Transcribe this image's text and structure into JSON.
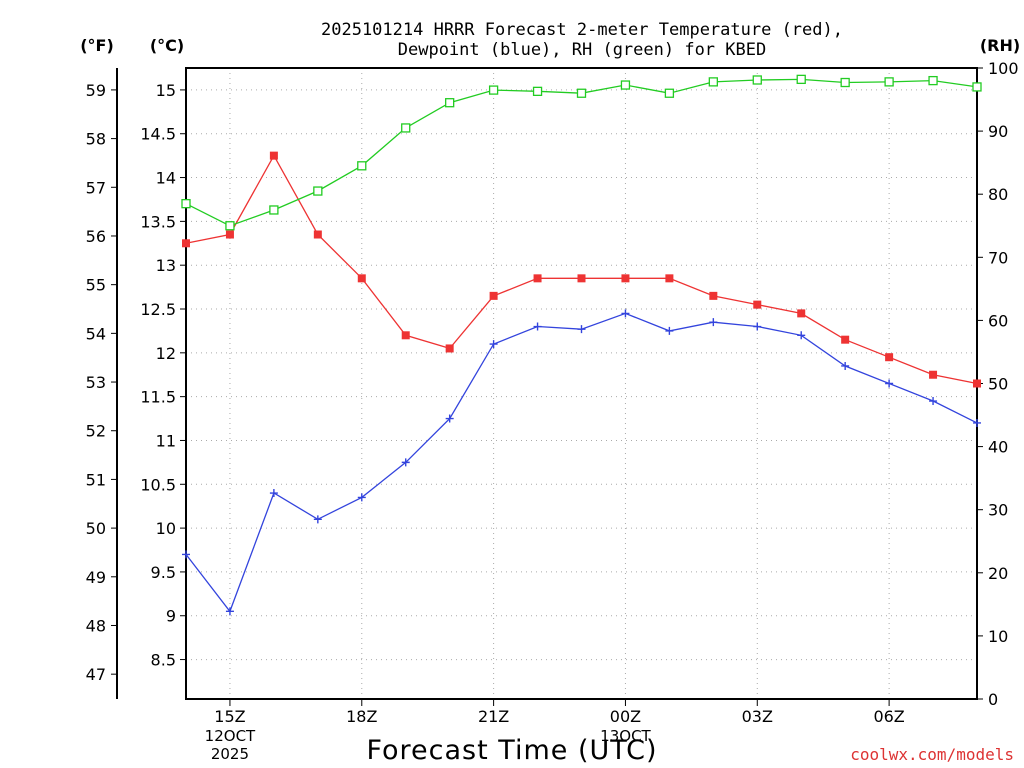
{
  "chart_data": {
    "type": "line",
    "title_line1": "2025101214 HRRR Forecast 2-meter Temperature (red),",
    "title_line2": "Dewpoint (blue), RH (green) for KBED",
    "xlabel": "Forecast Time (UTC)",
    "credit": "coolwx.com/models",
    "axis_units": {
      "fahrenheit": "(°F)",
      "celsius": "(°C)",
      "rh": "(RH)"
    },
    "x_ticks": [
      {
        "hour": 1,
        "label": "15Z",
        "date1": "12OCT",
        "date2": "2025"
      },
      {
        "hour": 4,
        "label": "18Z",
        "date1": "",
        "date2": ""
      },
      {
        "hour": 7,
        "label": "21Z",
        "date1": "",
        "date2": ""
      },
      {
        "hour": 10,
        "label": "00Z",
        "date1": "13OCT",
        "date2": ""
      },
      {
        "hour": 13,
        "label": "03Z",
        "date1": "",
        "date2": ""
      },
      {
        "hour": 16,
        "label": "06Z",
        "date1": "",
        "date2": ""
      }
    ],
    "x_range": [
      0,
      18
    ],
    "celsius_range": [
      8.05,
      15.25
    ],
    "rh_range": [
      0,
      100
    ],
    "celsius_ticks": [
      "8.5",
      "9",
      "9.5",
      "10",
      "10.5",
      "11",
      "11.5",
      "12",
      "12.5",
      "13",
      "13.5",
      "14",
      "14.5",
      "15"
    ],
    "fahrenheit_ticks": [
      "47",
      "48",
      "49",
      "50",
      "51",
      "52",
      "53",
      "54",
      "55",
      "56",
      "57",
      "58",
      "59"
    ],
    "rh_ticks": [
      "0",
      "10",
      "20",
      "30",
      "40",
      "50",
      "60",
      "70",
      "80",
      "90",
      "100"
    ],
    "series": [
      {
        "name": "Temperature",
        "axis": "celsius",
        "color": "#ee3333",
        "marker": "filled-square",
        "values": [
          13.25,
          13.35,
          14.25,
          13.35,
          12.85,
          12.2,
          12.05,
          12.65,
          12.85,
          12.85,
          12.85,
          12.85,
          12.65,
          12.55,
          12.45,
          12.15,
          11.95,
          11.75,
          11.65
        ]
      },
      {
        "name": "Dewpoint",
        "axis": "celsius",
        "color": "#3344dd",
        "marker": "plus",
        "values": [
          9.7,
          9.05,
          10.4,
          10.1,
          10.35,
          10.75,
          11.25,
          12.1,
          12.3,
          12.27,
          12.45,
          12.25,
          12.35,
          12.3,
          12.2,
          11.85,
          11.65,
          11.45,
          11.2
        ]
      },
      {
        "name": "RH",
        "axis": "rh",
        "color": "#22cc22",
        "marker": "open-square",
        "values": [
          78.5,
          75.0,
          77.5,
          80.5,
          84.5,
          90.5,
          94.5,
          96.5,
          96.3,
          96.0,
          97.3,
          96.0,
          97.8,
          98.1,
          98.2,
          97.7,
          97.8,
          98.0,
          97.0
        ]
      }
    ]
  }
}
